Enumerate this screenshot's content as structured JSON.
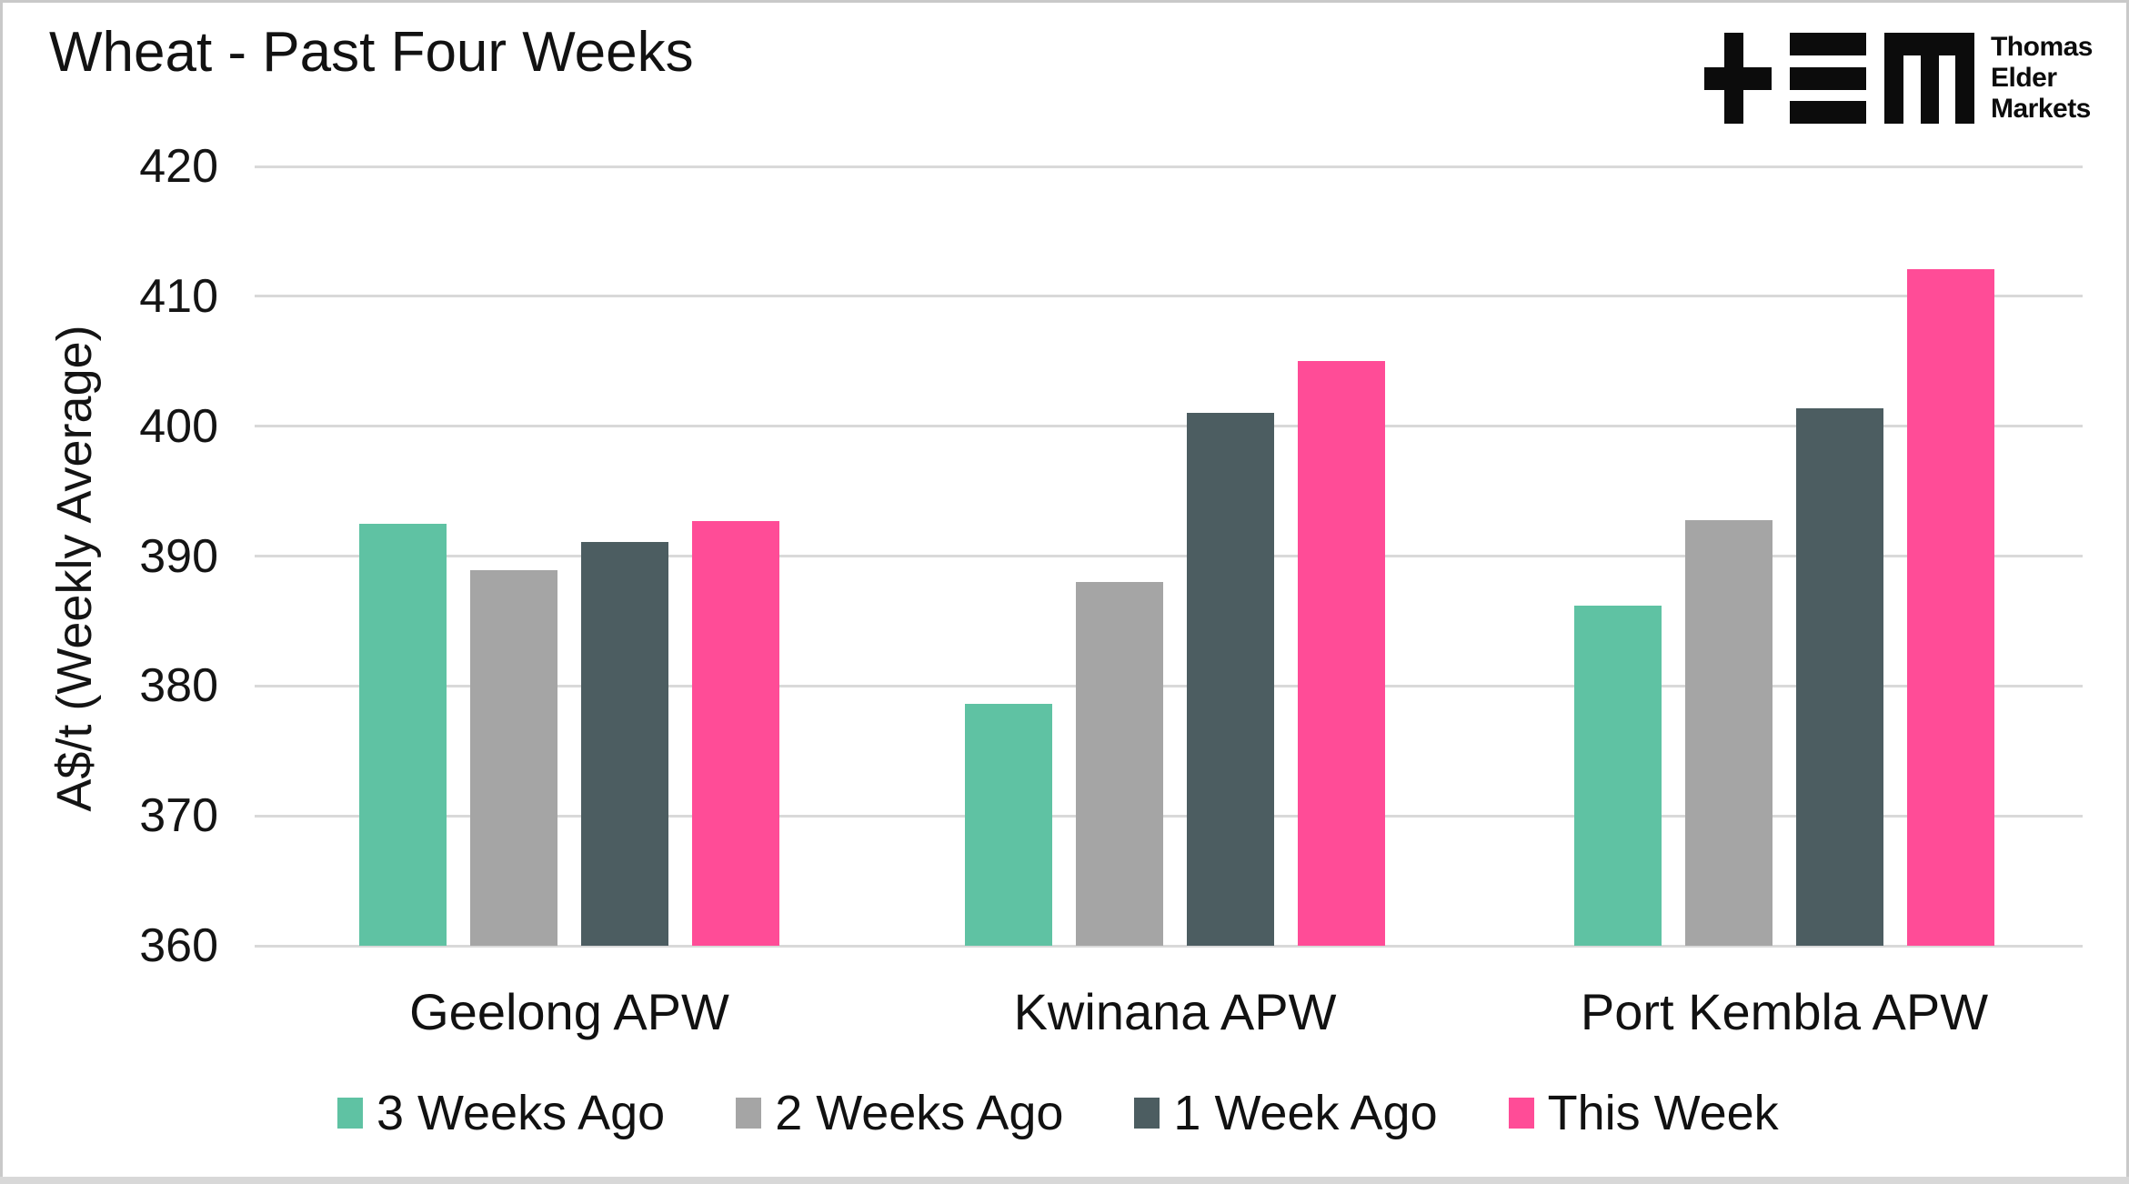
{
  "title": "Wheat - Past Four Weeks",
  "logo": {
    "name": "Thomas Elder Markets",
    "lines": [
      "Thomas",
      "Elder",
      "Markets"
    ]
  },
  "colors": {
    "background": "#FFFFFF",
    "border": "#C9C9C9",
    "gridline": "#D9D9D9",
    "text": "#111111",
    "series_teal": "#5FC2A3",
    "series_gray": "#A5A5A5",
    "series_dark": "#4C5D61",
    "series_pink": "#FF4C97"
  },
  "chart_data": {
    "type": "bar",
    "title": "Wheat - Past Four Weeks",
    "xlabel": "",
    "ylabel": "A$/t (Weekly Average)",
    "ylim": [
      360,
      420
    ],
    "yticks": [
      360,
      370,
      380,
      390,
      400,
      410,
      420
    ],
    "grid": "horizontal",
    "legend_position": "bottom",
    "categories": [
      "Geelong APW",
      "Kwinana APW",
      "Port Kembla APW"
    ],
    "series": [
      {
        "name": "3 Weeks Ago",
        "color": "#5FC2A3",
        "values": [
          392.5,
          378.6,
          386.2
        ]
      },
      {
        "name": "2 Weeks Ago",
        "color": "#A5A5A5",
        "values": [
          388.9,
          388.0,
          392.8
        ]
      },
      {
        "name": "1 Week Ago",
        "color": "#4C5D61",
        "values": [
          391.1,
          401.0,
          401.4
        ]
      },
      {
        "name": "This Week",
        "color": "#FF4C97",
        "values": [
          392.7,
          405.0,
          412.1
        ]
      }
    ]
  }
}
